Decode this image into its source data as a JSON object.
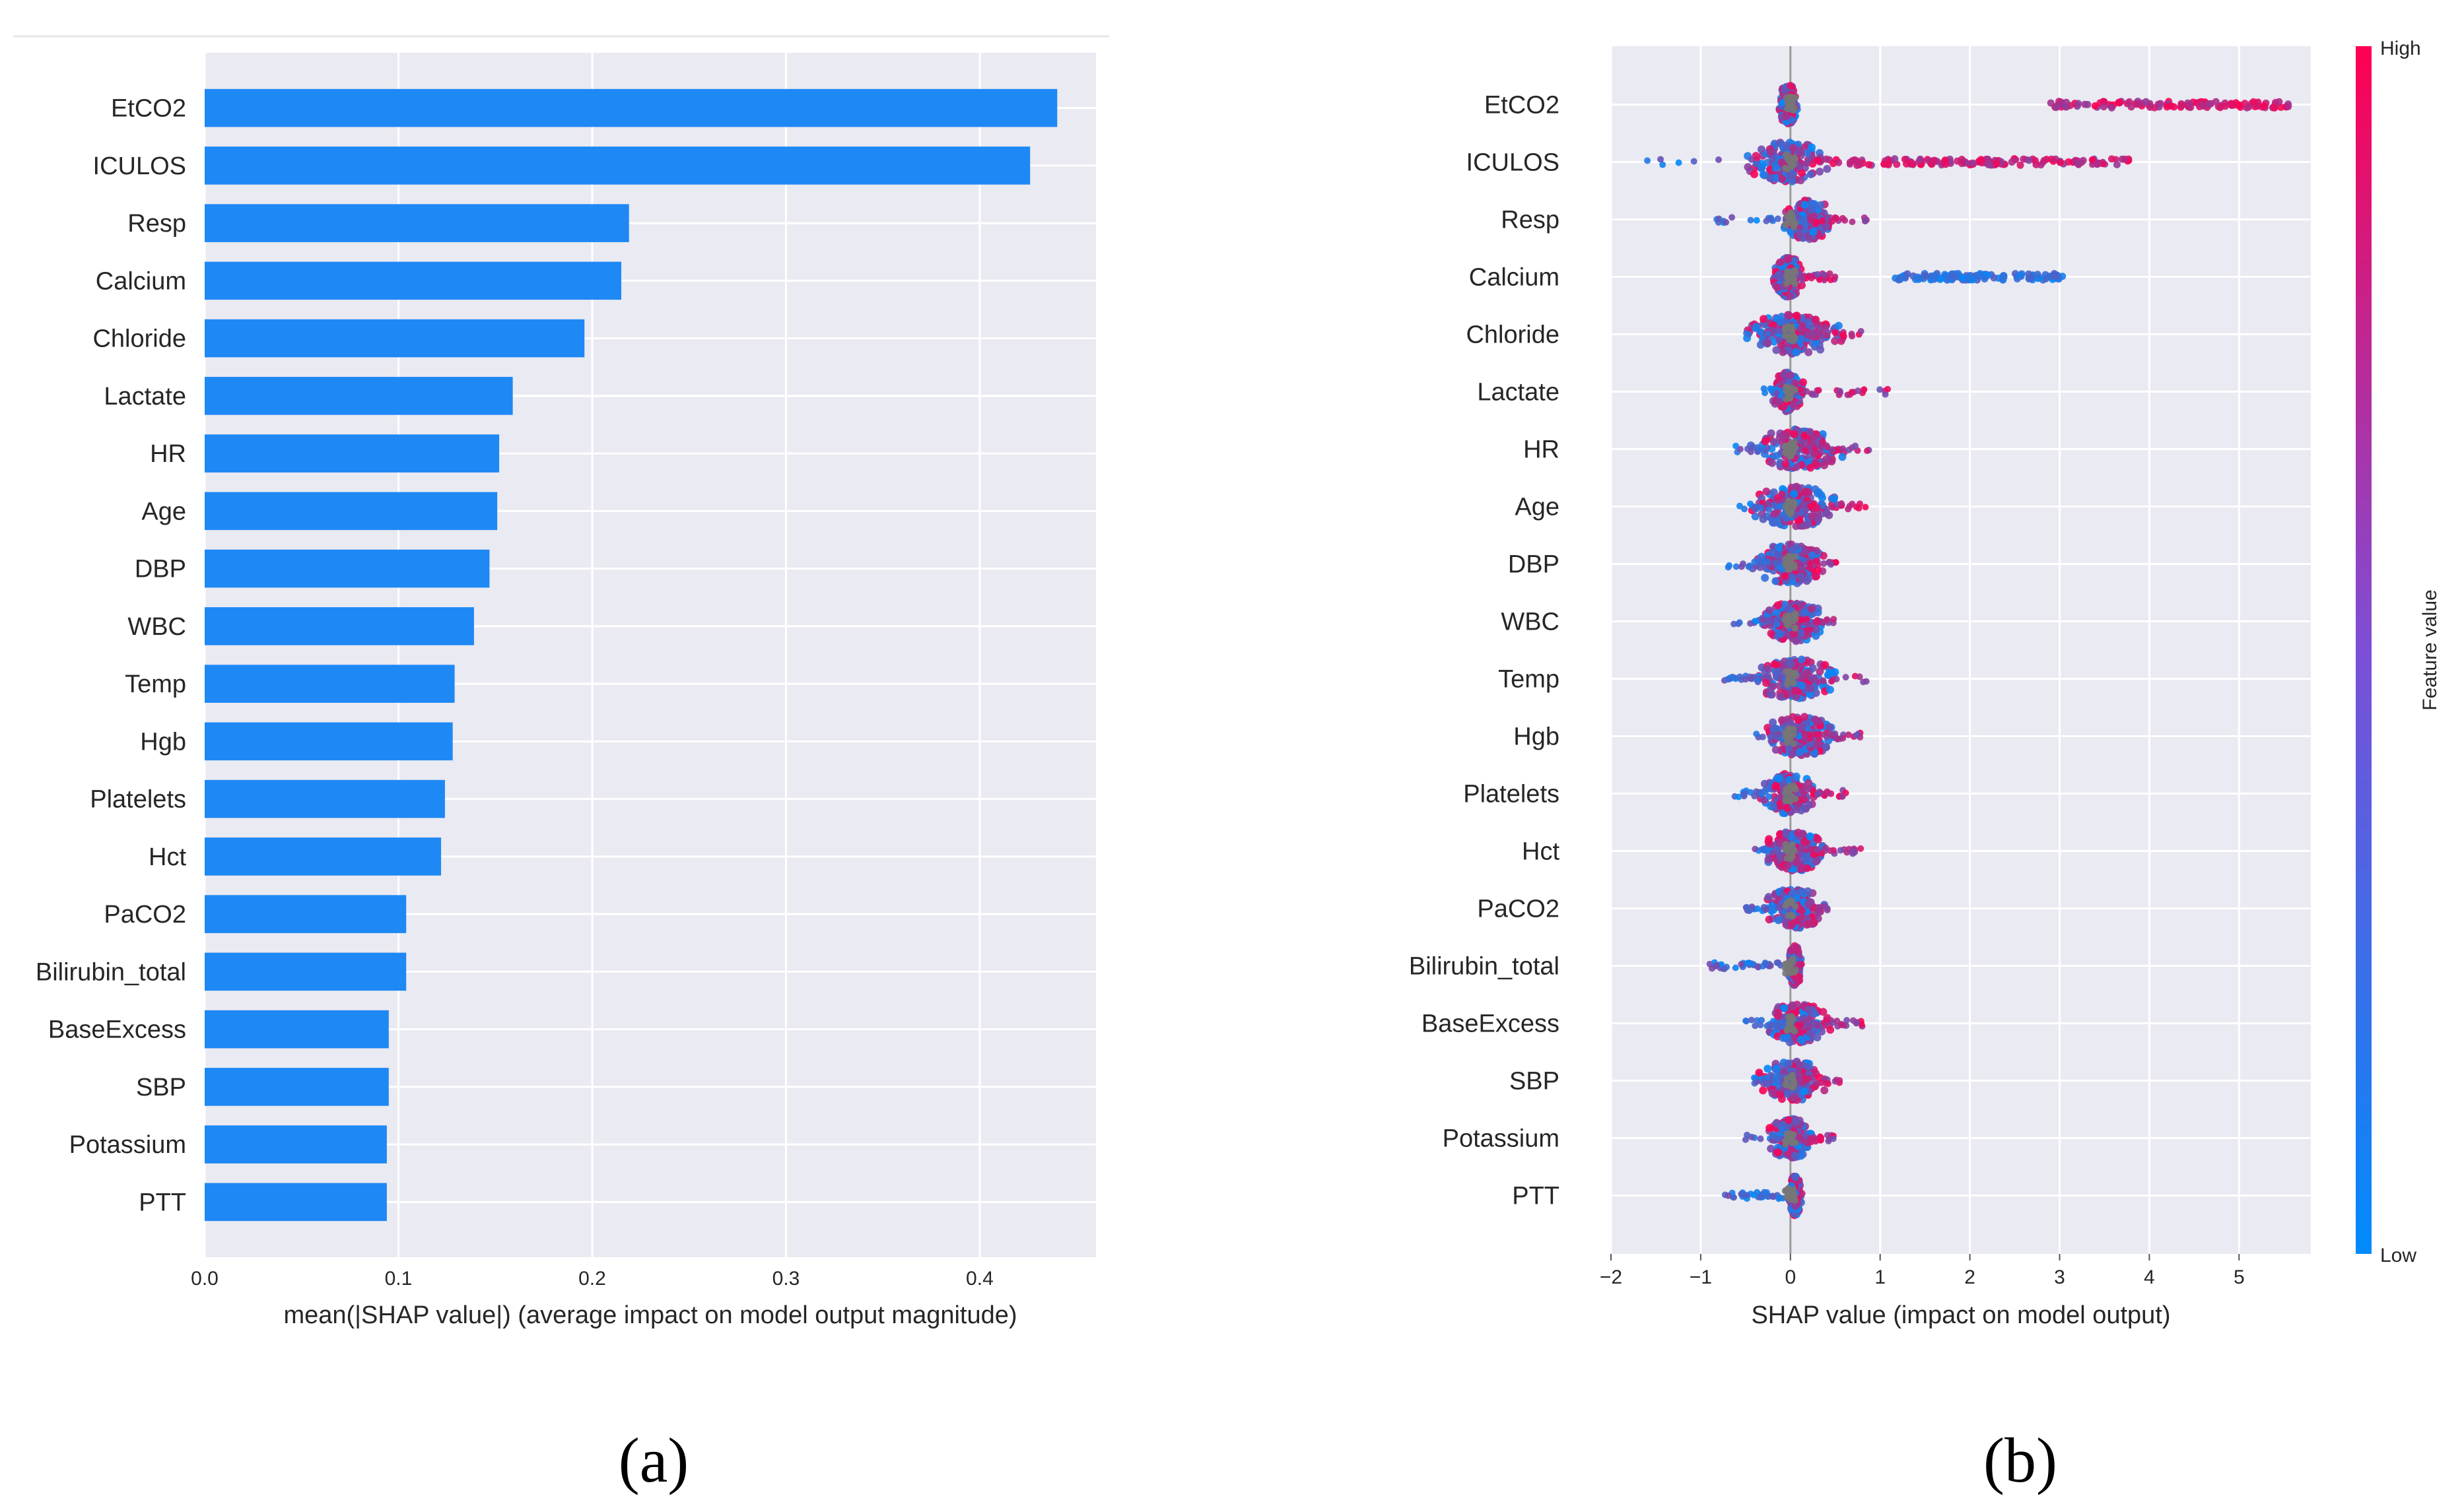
{
  "chart_data": [
    {
      "type": "bar",
      "panel_label": "(a)",
      "orientation": "horizontal",
      "categories": [
        "EtCO2",
        "ICULOS",
        "Resp",
        "Calcium",
        "Chloride",
        "Lactate",
        "HR",
        "Age",
        "DBP",
        "WBC",
        "Temp",
        "Hgb",
        "Platelets",
        "Hct",
        "PaCO2",
        "Bilirubin_total",
        "BaseExcess",
        "SBP",
        "Potassium",
        "PTT"
      ],
      "values": [
        0.44,
        0.426,
        0.219,
        0.215,
        0.196,
        0.159,
        0.152,
        0.151,
        0.147,
        0.139,
        0.129,
        0.128,
        0.124,
        0.122,
        0.104,
        0.104,
        0.095,
        0.095,
        0.094,
        0.094
      ],
      "xlabel": "mean(|SHAP value|) (average impact on model output magnitude)",
      "xlim": [
        0,
        0.46
      ],
      "xticks": [
        "0.0",
        "0.1",
        "0.2",
        "0.3",
        "0.4"
      ],
      "color": "#1e88f5",
      "grid": true
    },
    {
      "type": "scatter",
      "subtype": "beeswarm",
      "panel_label": "(b)",
      "categories": [
        "EtCO2",
        "ICULOS",
        "Resp",
        "Calcium",
        "Chloride",
        "Lactate",
        "HR",
        "Age",
        "DBP",
        "WBC",
        "Temp",
        "Hgb",
        "Platelets",
        "Hct",
        "PaCO2",
        "Bilirubin_total",
        "BaseExcess",
        "SBP",
        "Potassium",
        "PTT"
      ],
      "xlabel": "SHAP value (impact on model output)",
      "xlim": [
        -2,
        5.8
      ],
      "xticks": [
        "−2",
        "−1",
        "0",
        "1",
        "2",
        "3",
        "4",
        "5"
      ],
      "colorbar": {
        "label": "Feature value",
        "high": "High",
        "low": "Low",
        "high_color": "#ff0052",
        "low_color": "#008bfb"
      },
      "series": [
        {
          "feature": "EtCO2",
          "range": [
            -0.1,
            0.05
          ],
          "core": [
            -0.1,
            0.05
          ],
          "extra": [
            [
              2.9,
              5.55,
              "high"
            ]
          ]
        },
        {
          "feature": "ICULOS",
          "range": [
            -1.7,
            3.8
          ],
          "core": [
            -0.4,
            0.3
          ],
          "extra": [
            [
              0.3,
              3.8,
              "high"
            ]
          ]
        },
        {
          "feature": "Resp",
          "range": [
            -0.85,
            0.85
          ],
          "core": [
            0.0,
            0.4
          ]
        },
        {
          "feature": "Calcium",
          "range": [
            -0.2,
            0.5
          ],
          "core": [
            -0.15,
            0.1
          ],
          "extra": [
            [
              1.15,
              3.05,
              "low"
            ]
          ]
        },
        {
          "feature": "Chloride",
          "range": [
            -0.5,
            0.8
          ],
          "core": [
            -0.35,
            0.4
          ]
        },
        {
          "feature": "Lactate",
          "range": [
            -0.3,
            1.2
          ],
          "core": [
            -0.15,
            0.1
          ]
        },
        {
          "feature": "HR",
          "range": [
            -0.65,
            0.9
          ],
          "core": [
            -0.3,
            0.5
          ]
        },
        {
          "feature": "Age",
          "range": [
            -0.6,
            0.9
          ],
          "core": [
            -0.3,
            0.4
          ]
        },
        {
          "feature": "DBP",
          "range": [
            -0.7,
            0.55
          ],
          "core": [
            -0.3,
            0.3
          ]
        },
        {
          "feature": "WBC",
          "range": [
            -0.7,
            0.5
          ],
          "core": [
            -0.2,
            0.3
          ]
        },
        {
          "feature": "Temp",
          "range": [
            -0.75,
            0.95
          ],
          "core": [
            -0.3,
            0.4
          ]
        },
        {
          "feature": "Hgb",
          "range": [
            -0.4,
            0.8
          ],
          "core": [
            -0.2,
            0.4
          ]
        },
        {
          "feature": "Platelets",
          "range": [
            -0.65,
            0.65
          ],
          "core": [
            -0.25,
            0.2
          ]
        },
        {
          "feature": "Hct",
          "range": [
            -0.45,
            0.85
          ],
          "core": [
            -0.2,
            0.3
          ]
        },
        {
          "feature": "PaCO2",
          "range": [
            -0.5,
            0.45
          ],
          "core": [
            -0.2,
            0.3
          ]
        },
        {
          "feature": "Bilirubin_total",
          "range": [
            -0.9,
            0.15
          ],
          "core": [
            0.0,
            0.1
          ]
        },
        {
          "feature": "BaseExcess",
          "range": [
            -0.5,
            0.8
          ],
          "core": [
            -0.2,
            0.35
          ]
        },
        {
          "feature": "SBP",
          "range": [
            -0.5,
            0.55
          ],
          "core": [
            -0.25,
            0.3
          ]
        },
        {
          "feature": "Potassium",
          "range": [
            -0.5,
            0.5
          ],
          "core": [
            -0.2,
            0.2
          ]
        },
        {
          "feature": "PTT",
          "range": [
            -0.8,
            0.15
          ],
          "core": [
            0.0,
            0.1
          ]
        }
      ]
    }
  ]
}
